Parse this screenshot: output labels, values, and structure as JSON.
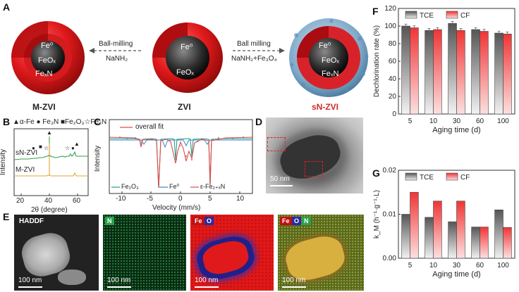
{
  "panels": {
    "A": {
      "label": "A",
      "particles": [
        {
          "name": "M-ZVI",
          "core": "Fe⁰",
          "middle": "FeOₓ",
          "outer": "FeₓN"
        },
        {
          "name": "ZVI",
          "core": "Fe⁰",
          "middle": "FeOₓ"
        },
        {
          "name": "sN-ZVI",
          "core": "Fe⁰",
          "middle": "FeOₓ",
          "outer": "FeₓN"
        }
      ],
      "arrow_left": {
        "top": "Ball-milling",
        "bottom": "NaNH₂"
      },
      "arrow_right": {
        "top": "Ball milling",
        "bottom": "NaNH₂+Fe₃O₄"
      }
    },
    "B": {
      "label": "B",
      "legend_line1": "▲α-Fe  ● Fe₃N  ■Fe₂O₃☆Fe₂N",
      "ylabel": "Intensity",
      "xlabel": "2θ (degree)",
      "series": [
        "sN-ZVI",
        "M-ZVI"
      ],
      "xticks": [
        "20",
        "40",
        "60"
      ],
      "markers": [
        "●",
        "■",
        "☆",
        "▲",
        "☆",
        "●",
        "▲"
      ]
    },
    "C": {
      "label": "C",
      "legend": "overall fit",
      "ylabel": "Intensity",
      "xlabel": "Velocity (mm/s)",
      "xticks": [
        "-10",
        "-5",
        "0",
        "5",
        "10"
      ],
      "bottom_legend": [
        "Fe₂O₃",
        "Fe⁰",
        "ε-Fe₂₊ₓN"
      ]
    },
    "D": {
      "label": "D",
      "scalebar": "50 nm"
    },
    "E": {
      "label": "E",
      "maps": [
        {
          "title": "HADDF",
          "scalebar": "100 nm"
        },
        {
          "tags": [
            "N"
          ],
          "scalebar": "100 nm"
        },
        {
          "tags": [
            "Fe",
            "O"
          ],
          "scalebar": "100 nm"
        },
        {
          "tags": [
            "Fe",
            "O",
            "N"
          ],
          "scalebar": "100 nm"
        }
      ]
    }
  },
  "charts": {
    "F": {
      "label": "F",
      "ylabel": "Dechlorination rate (%)",
      "xlabel": "Aging time (d)",
      "legend": [
        "TCE",
        "CF"
      ]
    },
    "G": {
      "label": "G",
      "ylabel": "k_M (h⁻¹·g⁻¹·L)",
      "xlabel": "Aging time (d)",
      "legend": [
        "TCE",
        "CF"
      ]
    }
  },
  "chart_data": [
    {
      "type": "bar",
      "categories": [
        "5",
        "10",
        "30",
        "60",
        "100"
      ],
      "series": [
        {
          "name": "TCE",
          "values": [
            100,
            95,
            103,
            96,
            92
          ]
        },
        {
          "name": "CF",
          "values": [
            98,
            96,
            95,
            94,
            91
          ]
        }
      ],
      "ylabel": "Dechlorination rate (%)",
      "xlabel": "Aging time (d)",
      "ylim": [
        0,
        120
      ],
      "yticks": [
        "0",
        "20",
        "40",
        "60",
        "80",
        "100",
        "120"
      ],
      "error_bars": true,
      "legend_position": "top"
    },
    {
      "type": "bar",
      "categories": [
        "5",
        "10",
        "30",
        "60",
        "100"
      ],
      "series": [
        {
          "name": "TCE",
          "values": [
            0.01,
            0.0093,
            0.0083,
            0.0071,
            0.011
          ]
        },
        {
          "name": "CF",
          "values": [
            0.015,
            0.013,
            0.013,
            0.0071,
            0.007
          ]
        }
      ],
      "ylabel": "k_M (h⁻¹·g⁻¹·L)",
      "xlabel": "Aging time (d)",
      "ylim": [
        0,
        0.02
      ],
      "yticks": [
        "0.00",
        "0.01",
        "0.02"
      ],
      "legend_position": "top"
    }
  ]
}
